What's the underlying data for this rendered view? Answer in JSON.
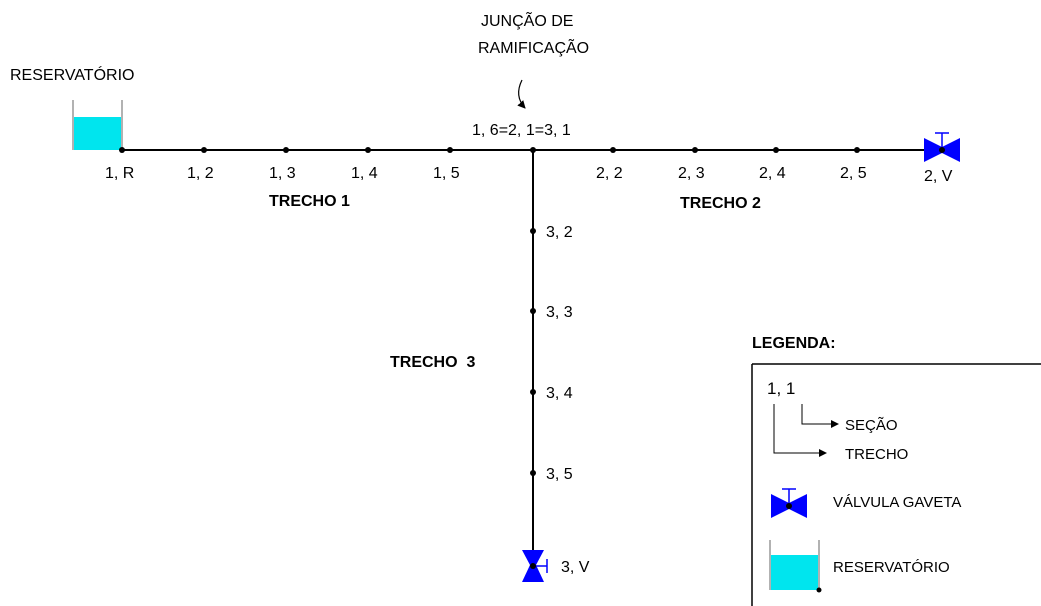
{
  "colors": {
    "line": "#000000",
    "valve": "#0000ff",
    "water": "#00e5ee",
    "tank_wall": "#999999"
  },
  "reservoir_label": "RESERVATÓRIO",
  "junction_title": {
    "line1": "JUNÇÃO DE",
    "line2": "RAMIFICAÇÃO"
  },
  "junction_node_label": "1, 6=2, 1=3, 1",
  "trecho1": {
    "name": "TRECHO 1",
    "nodes": [
      "1, R",
      "1, 2",
      "1, 3",
      "1, 4",
      "1, 5"
    ]
  },
  "trecho2": {
    "name": "TRECHO 2",
    "nodes": [
      "2, 2",
      "2, 3",
      "2, 4",
      "2, 5"
    ],
    "end": "2, V"
  },
  "trecho3": {
    "name": "TRECHO  3",
    "nodes": [
      "3, 2",
      "3, 3",
      "3, 4",
      "3, 5"
    ],
    "end": "3, V"
  },
  "legend": {
    "title": "LEGENDA:",
    "example": "1, 1",
    "secao": "SEÇÃO",
    "trecho": "TRECHO",
    "valve": "VÁLVULA GAVETA",
    "reservoir": "RESERVATÓRIO"
  },
  "icons": [
    "gate-valve-icon",
    "reservoir-icon",
    "arrow-right-icon"
  ]
}
